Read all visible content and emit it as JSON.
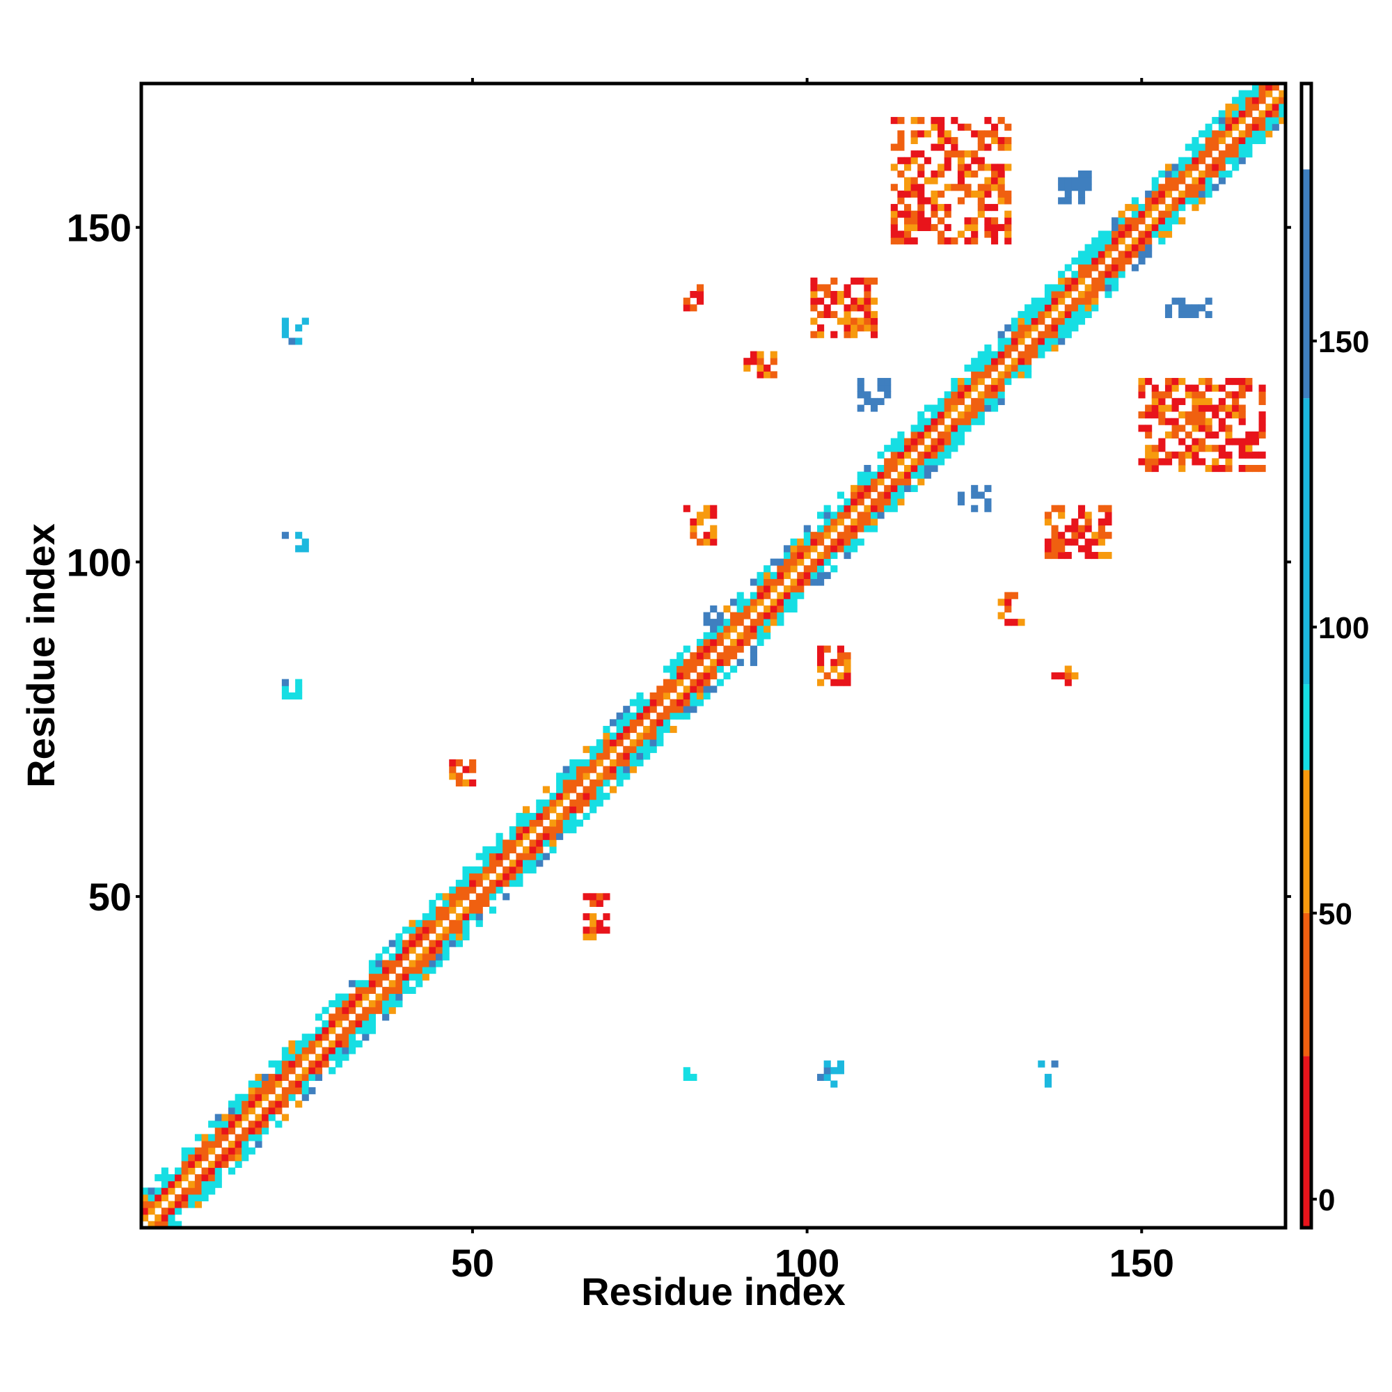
{
  "chart_data": {
    "type": "heatmap",
    "title": "",
    "xlabel": "Residue index",
    "ylabel": "Residue index",
    "xlim": [
      1,
      171
    ],
    "ylim": [
      1,
      171
    ],
    "x_ticks": [
      50,
      100,
      150
    ],
    "y_ticks": [
      50,
      100,
      150
    ],
    "grid": false,
    "legend": "colorbar-right",
    "colorbar": {
      "ticks": [
        0,
        50,
        100,
        150
      ],
      "range": [
        -5,
        195
      ],
      "stops": [
        {
          "from": -5,
          "to": 25,
          "color": "#e8141b"
        },
        {
          "from": 25,
          "to": 50,
          "color": "#f06010"
        },
        {
          "from": 50,
          "to": 75,
          "color": "#f79a0e"
        },
        {
          "from": 75,
          "to": 90,
          "color": "#16dee3"
        },
        {
          "from": 90,
          "to": 140,
          "color": "#1cb8de"
        },
        {
          "from": 140,
          "to": 180,
          "color": "#3f7fbf"
        },
        {
          "from": 180,
          "to": 195,
          "color": "#ffffff"
        }
      ]
    },
    "palette": [
      "#e8141b",
      "#f06010",
      "#f79a0e",
      "#16dee3",
      "#3f7fbf"
    ],
    "diagonal": {
      "from": 1,
      "to": 171,
      "half_width": 5
    },
    "off_diagonal_patches": [
      {
        "x": [
          82,
          86
        ],
        "y": [
          103,
          108
        ],
        "value": 20
      },
      {
        "x": [
          102,
          106
        ],
        "y": [
          82,
          87
        ],
        "value": 20
      },
      {
        "x": [
          101,
          110
        ],
        "y": [
          134,
          142
        ],
        "value": 30
      },
      {
        "x": [
          136,
          145
        ],
        "y": [
          101,
          108
        ],
        "value": 30
      },
      {
        "x": [
          113,
          130
        ],
        "y": [
          148,
          166
        ],
        "value": 55
      },
      {
        "x": [
          150,
          168
        ],
        "y": [
          114,
          127
        ],
        "value": 55
      },
      {
        "x": [
          22,
          25
        ],
        "y": [
          133,
          136
        ],
        "value": 90
      },
      {
        "x": [
          22,
          25
        ],
        "y": [
          102,
          104
        ],
        "value": 110
      },
      {
        "x": [
          22,
          24
        ],
        "y": [
          80,
          82
        ],
        "value": 85
      },
      {
        "x": [
          102,
          105
        ],
        "y": [
          22,
          25
        ],
        "value": 110
      },
      {
        "x": [
          135,
          137
        ],
        "y": [
          22,
          25
        ],
        "value": 110
      },
      {
        "x": [
          81,
          83
        ],
        "y": [
          23,
          24
        ],
        "value": 85
      },
      {
        "x": [
          47,
          50
        ],
        "y": [
          67,
          70
        ],
        "value": 60
      },
      {
        "x": [
          67,
          70
        ],
        "y": [
          44,
          50
        ],
        "value": 60
      },
      {
        "x": [
          91,
          95
        ],
        "y": [
          128,
          131
        ],
        "value": 20
      },
      {
        "x": [
          129,
          132
        ],
        "y": [
          91,
          95
        ],
        "value": 20
      },
      {
        "x": [
          137,
          141
        ],
        "y": [
          82,
          84
        ],
        "value": 55
      },
      {
        "x": [
          82,
          84
        ],
        "y": [
          137,
          141
        ],
        "value": 55
      },
      {
        "x": [
          138,
          142
        ],
        "y": [
          154,
          158
        ],
        "value": 150
      },
      {
        "x": [
          154,
          160
        ],
        "y": [
          137,
          139
        ],
        "value": 150
      },
      {
        "x": [
          108,
          112
        ],
        "y": [
          123,
          127
        ],
        "value": 150
      },
      {
        "x": [
          123,
          127
        ],
        "y": [
          108,
          112
        ],
        "value": 150
      },
      {
        "x": [
          85,
          87
        ],
        "y": [
          90,
          93
        ],
        "value": 150
      },
      {
        "x": [
          90,
          93
        ],
        "y": [
          85,
          87
        ],
        "value": 150
      }
    ]
  }
}
